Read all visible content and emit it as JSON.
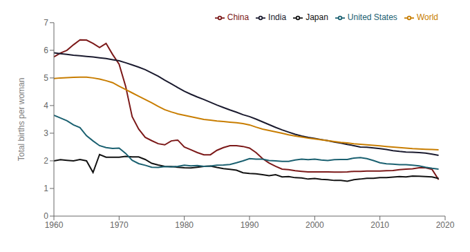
{
  "chart_data": {
    "type": "line",
    "ylabel": "Total births per woman",
    "x": [
      1960,
      1961,
      1962,
      1963,
      1964,
      1965,
      1966,
      1967,
      1968,
      1969,
      1970,
      1971,
      1972,
      1973,
      1974,
      1975,
      1976,
      1977,
      1978,
      1979,
      1980,
      1981,
      1982,
      1983,
      1984,
      1985,
      1986,
      1987,
      1988,
      1989,
      1990,
      1991,
      1992,
      1993,
      1994,
      1995,
      1996,
      1997,
      1998,
      1999,
      2000,
      2001,
      2002,
      2003,
      2004,
      2005,
      2006,
      2007,
      2008,
      2009,
      2010,
      2011,
      2012,
      2013,
      2014,
      2015,
      2016,
      2017,
      2018,
      2019
    ],
    "series": [
      {
        "name": "China",
        "color": "#7B1818",
        "values": [
          5.76,
          5.9,
          6.0,
          6.2,
          6.38,
          6.37,
          6.25,
          6.1,
          6.25,
          5.85,
          5.5,
          4.7,
          3.6,
          3.15,
          2.85,
          2.73,
          2.62,
          2.58,
          2.72,
          2.75,
          2.5,
          2.4,
          2.3,
          2.22,
          2.22,
          2.38,
          2.48,
          2.55,
          2.55,
          2.52,
          2.46,
          2.3,
          2.08,
          1.92,
          1.8,
          1.7,
          1.68,
          1.64,
          1.62,
          1.6,
          1.6,
          1.6,
          1.6,
          1.59,
          1.59,
          1.6,
          1.62,
          1.62,
          1.63,
          1.63,
          1.63,
          1.64,
          1.65,
          1.68,
          1.7,
          1.71,
          1.75,
          1.75,
          1.69,
          1.32
        ]
      },
      {
        "name": "India",
        "color": "#1a1a2e",
        "values": [
          5.91,
          5.88,
          5.85,
          5.82,
          5.8,
          5.78,
          5.76,
          5.73,
          5.7,
          5.66,
          5.62,
          5.55,
          5.47,
          5.39,
          5.3,
          5.18,
          5.06,
          4.92,
          4.79,
          4.65,
          4.52,
          4.41,
          4.31,
          4.22,
          4.12,
          4.02,
          3.93,
          3.84,
          3.76,
          3.67,
          3.6,
          3.51,
          3.41,
          3.31,
          3.21,
          3.12,
          3.04,
          2.96,
          2.9,
          2.85,
          2.81,
          2.77,
          2.73,
          2.68,
          2.64,
          2.59,
          2.55,
          2.5,
          2.49,
          2.47,
          2.44,
          2.41,
          2.37,
          2.34,
          2.32,
          2.31,
          2.3,
          2.28,
          2.24,
          2.2
        ]
      },
      {
        "name": "Japan",
        "color": "#111111",
        "values": [
          2.0,
          2.04,
          2.02,
          2.0,
          2.05,
          2.0,
          1.58,
          2.23,
          2.13,
          2.13,
          2.13,
          2.16,
          2.14,
          2.14,
          2.05,
          1.91,
          1.85,
          1.8,
          1.79,
          1.77,
          1.75,
          1.74,
          1.77,
          1.8,
          1.81,
          1.76,
          1.72,
          1.69,
          1.66,
          1.57,
          1.54,
          1.53,
          1.5,
          1.46,
          1.5,
          1.42,
          1.43,
          1.39,
          1.38,
          1.34,
          1.36,
          1.33,
          1.32,
          1.29,
          1.29,
          1.26,
          1.32,
          1.34,
          1.37,
          1.37,
          1.39,
          1.39,
          1.41,
          1.43,
          1.42,
          1.45,
          1.44,
          1.43,
          1.42,
          1.36
        ]
      },
      {
        "name": "United States",
        "color": "#1a6070",
        "values": [
          3.65,
          3.55,
          3.45,
          3.3,
          3.2,
          2.91,
          2.72,
          2.55,
          2.48,
          2.45,
          2.46,
          2.27,
          2.02,
          1.9,
          1.84,
          1.77,
          1.76,
          1.79,
          1.78,
          1.8,
          1.84,
          1.82,
          1.83,
          1.8,
          1.81,
          1.84,
          1.85,
          1.87,
          1.93,
          2.0,
          2.08,
          2.06,
          2.06,
          2.01,
          2.0,
          1.98,
          1.98,
          2.03,
          2.06,
          2.04,
          2.06,
          2.03,
          2.01,
          2.04,
          2.05,
          2.05,
          2.1,
          2.12,
          2.08,
          2.01,
          1.93,
          1.89,
          1.88,
          1.86,
          1.86,
          1.84,
          1.82,
          1.77,
          1.73,
          1.7
        ]
      },
      {
        "name": "World",
        "color": "#c87d00",
        "values": [
          4.98,
          5.0,
          5.01,
          5.02,
          5.03,
          5.03,
          5.0,
          4.96,
          4.9,
          4.83,
          4.7,
          4.58,
          4.46,
          4.34,
          4.22,
          4.1,
          3.97,
          3.85,
          3.77,
          3.7,
          3.65,
          3.6,
          3.55,
          3.5,
          3.47,
          3.44,
          3.42,
          3.4,
          3.38,
          3.35,
          3.3,
          3.22,
          3.15,
          3.1,
          3.05,
          3.0,
          2.94,
          2.9,
          2.86,
          2.82,
          2.79,
          2.76,
          2.73,
          2.7,
          2.67,
          2.65,
          2.62,
          2.6,
          2.58,
          2.56,
          2.54,
          2.52,
          2.5,
          2.48,
          2.46,
          2.44,
          2.43,
          2.42,
          2.41,
          2.4
        ]
      }
    ],
    "xlim": [
      1960,
      2020
    ],
    "ylim": [
      0,
      7
    ],
    "xticks": [
      1960,
      1970,
      1980,
      1990,
      2000,
      2010,
      2020
    ],
    "yticks": [
      0,
      1,
      2,
      3,
      4,
      5,
      6,
      7
    ],
    "grid": false,
    "legend": "upper right"
  }
}
